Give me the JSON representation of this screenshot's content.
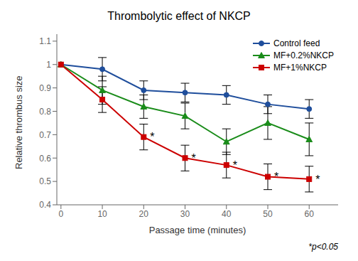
{
  "chart_data": {
    "type": "line",
    "title": "Thrombolytic effect of NKCP",
    "x_label": "Passage time (minutes)",
    "y_label": "Relative thrombus size",
    "x": [
      0,
      10,
      20,
      30,
      40,
      50,
      60
    ],
    "series": [
      {
        "name": "Control feed",
        "color": "#1f4e9c",
        "marker": "circle",
        "values": [
          1.0,
          0.98,
          0.89,
          0.88,
          0.87,
          0.83,
          0.81
        ],
        "errors": [
          0.0,
          0.05,
          0.04,
          0.04,
          0.04,
          0.04,
          0.04
        ]
      },
      {
        "name": "MF+0.2%NKCP",
        "color": "#1a8c1a",
        "marker": "triangle",
        "values": [
          1.0,
          0.89,
          0.82,
          0.78,
          0.67,
          0.75,
          0.68
        ],
        "errors": [
          0.0,
          0.06,
          0.05,
          0.055,
          0.055,
          0.07,
          0.07
        ]
      },
      {
        "name": "MF+1%NKCP",
        "color": "#cc0000",
        "marker": "square",
        "values": [
          1.0,
          0.85,
          0.69,
          0.6,
          0.57,
          0.52,
          0.51
        ],
        "errors": [
          0.0,
          0.055,
          0.055,
          0.055,
          0.055,
          0.055,
          0.055
        ]
      }
    ],
    "point_labels": [
      {
        "x": 20,
        "y": 0.69,
        "label": "*"
      },
      {
        "x": 30,
        "y": 0.6,
        "label": "*"
      },
      {
        "x": 40,
        "y": 0.57,
        "label": "*"
      },
      {
        "x": 50,
        "y": 0.52,
        "label": "*"
      },
      {
        "x": 60,
        "y": 0.51,
        "label": "*"
      }
    ],
    "note": "*p<0.05",
    "xlim": [
      -1,
      67
    ],
    "xticks": [
      0,
      10,
      20,
      30,
      40,
      50,
      60
    ],
    "ylim": [
      0.4,
      1.13
    ],
    "yticks": [
      0.4,
      0.5,
      0.6,
      0.7,
      0.8,
      0.9,
      1,
      1.1
    ],
    "legend": "upper right",
    "grid": false
  }
}
